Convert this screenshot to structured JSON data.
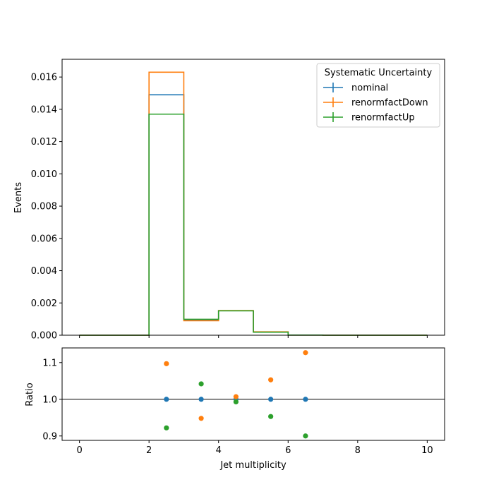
{
  "chart_data": {
    "type": "line",
    "legend": {
      "title": "Systematic Uncertainty",
      "placement": "upper-right"
    },
    "colors": {
      "nominal": "#1f77b4",
      "renormfactDown": "#ff7f0e",
      "renormfactUp": "#2ca02c"
    },
    "main_panel": {
      "ylabel": "Events",
      "ylim": [
        0,
        0.0171
      ],
      "yticks": [
        "0.000",
        "0.002",
        "0.004",
        "0.006",
        "0.008",
        "0.010",
        "0.012",
        "0.014",
        "0.016"
      ],
      "bin_edges": [
        0,
        1,
        2,
        3,
        4,
        5,
        6,
        7,
        8,
        9,
        10
      ],
      "series": [
        {
          "name": "nominal",
          "values": [
            0,
            0,
            0.0149,
            0.00095,
            0.00152,
            0.0002,
            1e-05,
            0,
            0,
            0
          ]
        },
        {
          "name": "renormfactDown",
          "values": [
            0,
            0,
            0.0163,
            0.0009,
            0.00153,
            0.00021,
            1e-05,
            0,
            0,
            0
          ]
        },
        {
          "name": "renormfactUp",
          "values": [
            0,
            0,
            0.0137,
            0.00099,
            0.00151,
            0.00019,
            1e-05,
            0,
            0,
            0
          ]
        }
      ]
    },
    "ratio_panel": {
      "ylabel": "Ratio",
      "xlabel": "Jet multiplicity",
      "ylim": [
        0.888,
        1.14
      ],
      "yticks": [
        "0.9",
        "1.0",
        "1.1"
      ],
      "reference_line": 1.0,
      "x": [
        2.5,
        3.5,
        4.5,
        5.5,
        6.5
      ],
      "series": [
        {
          "name": "nominal",
          "values": [
            1.0,
            1.0,
            1.0,
            1.0,
            1.0
          ]
        },
        {
          "name": "renormfactDown",
          "values": [
            1.097,
            0.948,
            1.007,
            1.053,
            1.127
          ]
        },
        {
          "name": "renormfactUp",
          "values": [
            0.922,
            1.042,
            0.993,
            0.953,
            0.9
          ]
        }
      ]
    },
    "xlim": [
      -0.5,
      10.5
    ],
    "xticks": [
      "0",
      "2",
      "4",
      "6",
      "8",
      "10"
    ]
  }
}
